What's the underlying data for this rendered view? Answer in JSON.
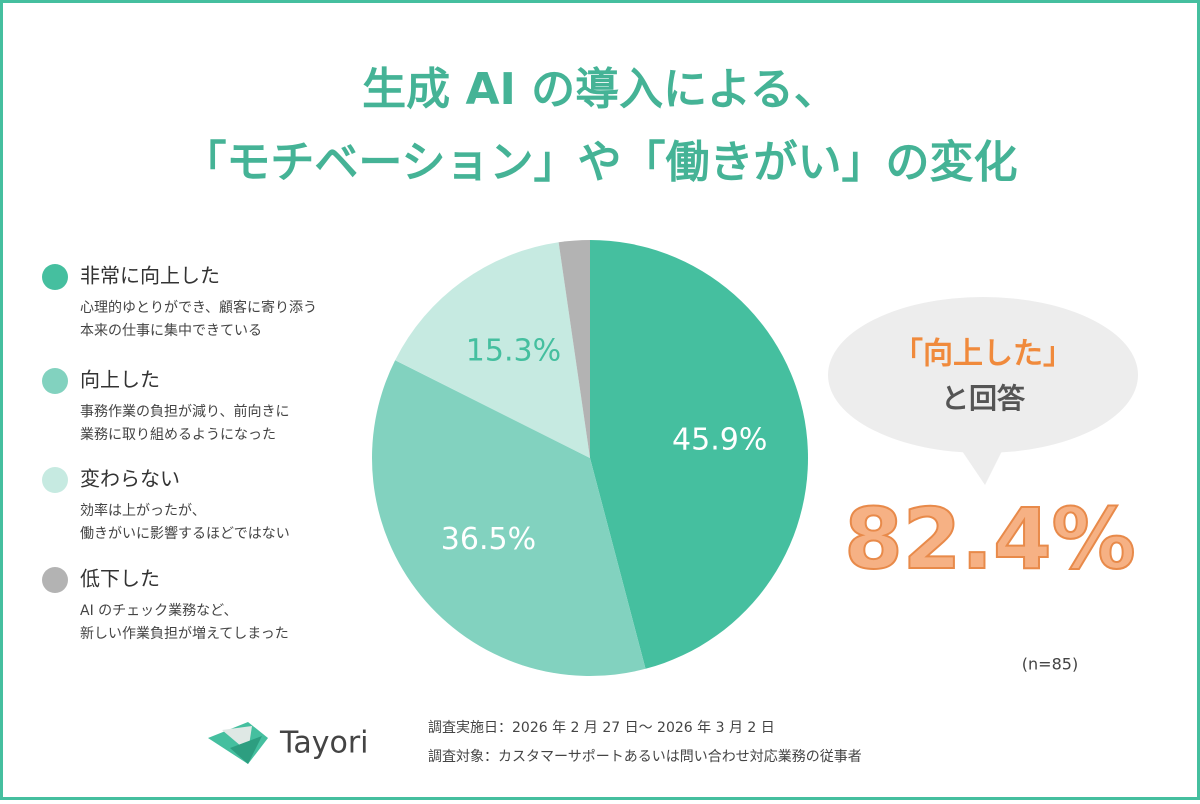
{
  "title": [
    "生成 AI の導入による、",
    "「モチベーション」や「働きがい」の変化"
  ],
  "chart_data": {
    "type": "pie",
    "categories": [
      "非常に向上した",
      "向上した",
      "変わらない",
      "低下した"
    ],
    "descriptions": [
      [
        "心理的ゆとりができ、顧客に寄り添う",
        "本来の仕事に集中できている"
      ],
      [
        "事務作業の負担が減り、前向きに",
        "業務に取り組めるようになった"
      ],
      [
        "効率は上がったが、",
        "働きがいに影響するほどではない"
      ],
      [
        "AI のチェック業務など、",
        "新しい作業負担が増えてしまった"
      ]
    ],
    "values": [
      45.9,
      36.5,
      15.3,
      2.3
    ],
    "value_labels": [
      "45.9%",
      "36.5%",
      "15.3%",
      null
    ],
    "colors": [
      "#45bf9f",
      "#82d2bf",
      "#c6eae1",
      "#b3b3b3"
    ],
    "label_colors": [
      "#ffffff",
      "#ffffff",
      "#45bf9f",
      null
    ]
  },
  "callout": {
    "highlight": "「向上した」",
    "text": "と回答",
    "value": "82.4%"
  },
  "sample_note": "(n=85)",
  "footer": {
    "logo": "Tayori",
    "survey_lines": [
      "調査実施日：2026 年 2 月 27 日〜 2026 年 3 月 2 日",
      "調査対象：カスタマーサポートあるいは問い合わせ対応業務の従事者"
    ]
  }
}
